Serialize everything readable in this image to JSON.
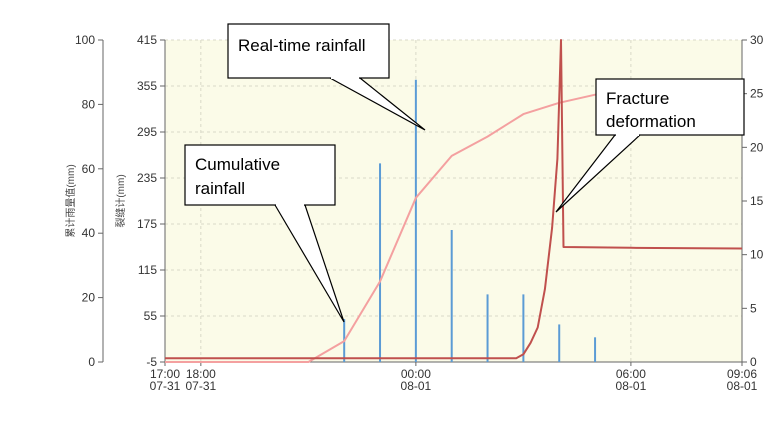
{
  "chart_data": {
    "type": "line",
    "background_color": "#fbfbe8",
    "grid": true,
    "y_left_outer": {
      "label": "累计雨量值(mm)",
      "range": [
        0,
        100
      ],
      "ticks": [
        "0",
        "20",
        "40",
        "60",
        "80",
        "100"
      ]
    },
    "y_left_inner": {
      "label": "裂缝计(mm)",
      "range": [
        -5,
        415
      ],
      "ticks": [
        "-5",
        "55",
        "115",
        "175",
        "235",
        "295",
        "355",
        "415"
      ]
    },
    "y_right": {
      "label": "",
      "range": [
        0,
        30
      ],
      "ticks": [
        "0",
        "5",
        "10",
        "15",
        "20",
        "25",
        "30"
      ]
    },
    "x_axis": {
      "range_hours": [
        17.0,
        33.1
      ],
      "tick_labels": [
        {
          "t": 17.0,
          "line1": "17:00",
          "line2": "07-31"
        },
        {
          "t": 18.0,
          "line1": "18:00",
          "line2": "07-31"
        },
        {
          "t": 24.0,
          "line1": "00:00",
          "line2": "08-01"
        },
        {
          "t": 30.0,
          "line1": "06:00",
          "line2": "08-01"
        },
        {
          "t": 33.1,
          "line1": "09:06",
          "line2": "08-01"
        }
      ]
    },
    "series": [
      {
        "name": "Real-time rainfall",
        "kind": "bar",
        "axis": "y_right",
        "color": "#5b9bd5",
        "points": [
          {
            "t": 22.0,
            "v": 4
          },
          {
            "t": 23.0,
            "v": 18.5
          },
          {
            "t": 24.0,
            "v": 26.3
          },
          {
            "t": 25.0,
            "v": 12.3
          },
          {
            "t": 26.0,
            "v": 6.3
          },
          {
            "t": 27.0,
            "v": 6.3
          },
          {
            "t": 28.0,
            "v": 3.5
          },
          {
            "t": 29.0,
            "v": 2.3
          }
        ]
      },
      {
        "name": "Cumulative rainfall",
        "kind": "line",
        "axis": "y_left_outer",
        "color": "#f4a0a0",
        "points": [
          {
            "t": 17.0,
            "v": 0
          },
          {
            "t": 21.0,
            "v": 0
          },
          {
            "t": 22.0,
            "v": 6.5
          },
          {
            "t": 23.0,
            "v": 25
          },
          {
            "t": 24.0,
            "v": 51
          },
          {
            "t": 25.0,
            "v": 64
          },
          {
            "t": 26.0,
            "v": 70
          },
          {
            "t": 27.0,
            "v": 77
          },
          {
            "t": 28.0,
            "v": 80.5
          },
          {
            "t": 29.0,
            "v": 83
          },
          {
            "t": 30.0,
            "v": 85
          }
        ]
      },
      {
        "name": "Fracture deformation",
        "kind": "line",
        "axis": "y_left_inner",
        "color": "#c0504d",
        "points": [
          {
            "t": 17.0,
            "v": 0
          },
          {
            "t": 26.8,
            "v": 0
          },
          {
            "t": 27.0,
            "v": 5
          },
          {
            "t": 27.2,
            "v": 20
          },
          {
            "t": 27.4,
            "v": 40
          },
          {
            "t": 27.6,
            "v": 90
          },
          {
            "t": 27.8,
            "v": 170
          },
          {
            "t": 27.95,
            "v": 260
          },
          {
            "t": 28.05,
            "v": 415
          },
          {
            "t": 28.12,
            "v": 145
          },
          {
            "t": 30.0,
            "v": 144
          },
          {
            "t": 33.1,
            "v": 143
          }
        ]
      }
    ],
    "annotations": [
      {
        "text": [
          "Real-time rainfall"
        ],
        "target_series": "Real-time rainfall"
      },
      {
        "text": [
          "Cumulative",
          "rainfall"
        ],
        "target_series": "Cumulative rainfall"
      },
      {
        "text": [
          "Fracture",
          "deformation"
        ],
        "target_series": "Fracture deformation"
      }
    ]
  }
}
